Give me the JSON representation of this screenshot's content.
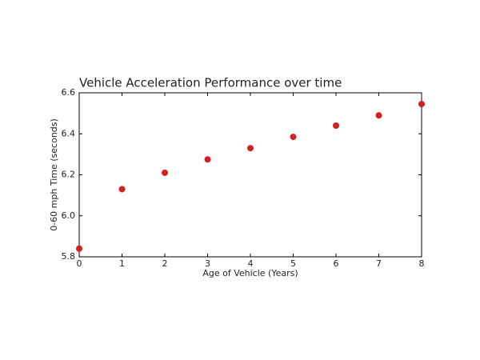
{
  "chart_data": {
    "type": "scatter",
    "title": "Vehicle Acceleration Performance over time",
    "x_label": "Age of Vehicle (Years)",
    "y_label": "0-60 mph Time (seconds)",
    "x": [
      0,
      1,
      2,
      3,
      4,
      5,
      6,
      7,
      8
    ],
    "values": [
      5.84,
      6.13,
      6.21,
      6.275,
      6.33,
      6.385,
      6.44,
      6.49,
      6.545
    ],
    "color": "#d42020",
    "xlim": [
      0,
      8
    ],
    "xticks": [
      0,
      1,
      2,
      3,
      4,
      5,
      6,
      7,
      8
    ],
    "ylim": [
      5.8,
      6.6
    ],
    "yticks": [
      5.8,
      {
        "value": 6,
        "label": "6.0"
      },
      6.2,
      6.4,
      6.6
    ],
    "grid": false
  }
}
